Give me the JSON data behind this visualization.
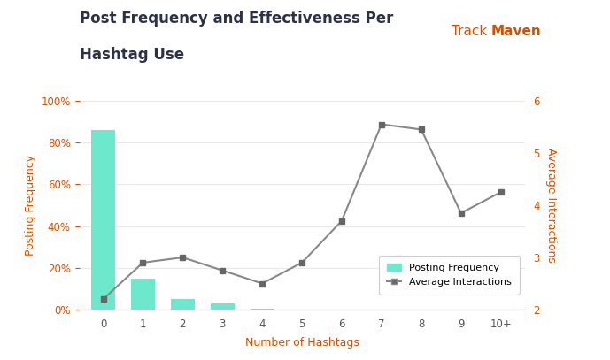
{
  "title_line1": "Post Frequency and Effectiveness Per",
  "title_line2": "Hashtag Use",
  "xlabel": "Number of Hashtags",
  "ylabel_left": "Posting Frequency",
  "ylabel_right": "Average Interactions",
  "categories": [
    "0",
    "1",
    "2",
    "3",
    "4",
    "5",
    "6",
    "7",
    "8",
    "9",
    "10+"
  ],
  "bar_values": [
    86,
    15,
    5,
    3,
    0.5,
    0.2,
    0.2,
    0.2,
    0.2,
    0.2,
    0.2
  ],
  "line_values": [
    2.2,
    2.9,
    3.0,
    2.75,
    2.5,
    2.9,
    3.7,
    5.55,
    5.45,
    3.85,
    4.25
  ],
  "bar_color": "#6de8cc",
  "line_color": "#888888",
  "marker_color": "#666666",
  "left_tick_color": "#d45000",
  "right_tick_color": "#d45000",
  "title_color": "#2d3148",
  "xlabel_color": "#d45000",
  "ylabel_left_color": "#d45000",
  "ylabel_right_color": "#d45000",
  "ylim_left": [
    0,
    100
  ],
  "ylim_right": [
    2,
    6
  ],
  "yticks_left": [
    0,
    20,
    40,
    60,
    80,
    100
  ],
  "ytick_labels_left": [
    "0%",
    "20%",
    "40%",
    "60%",
    "80%",
    "100%"
  ],
  "yticks_right": [
    2,
    3,
    4,
    5,
    6
  ],
  "legend_items": [
    "Posting Frequency",
    "Average Interactions"
  ],
  "background_color": "#ffffff",
  "title_fontsize": 12,
  "axis_label_fontsize": 9,
  "tick_fontsize": 8.5,
  "legend_fontsize": 8,
  "trackmaven_track_color": "#d45000",
  "trackmaven_maven_color": "#d45000"
}
